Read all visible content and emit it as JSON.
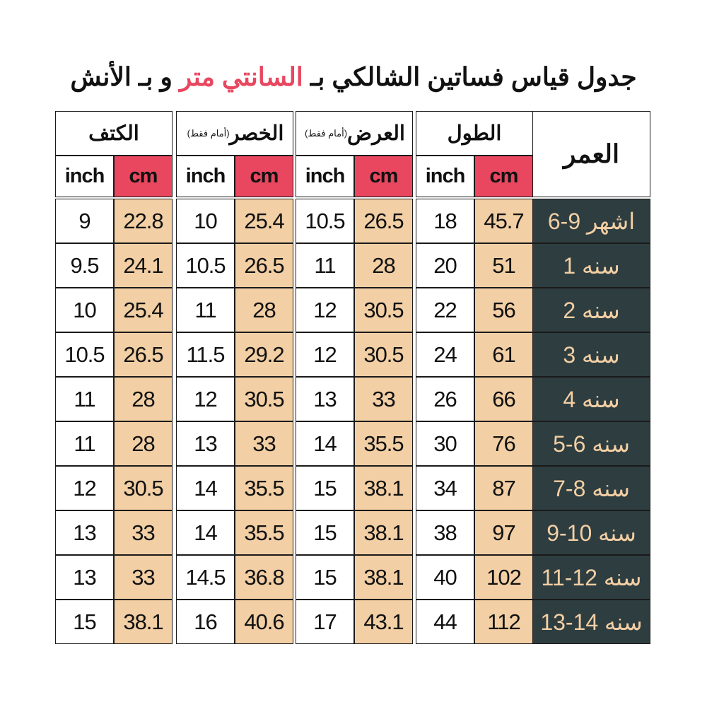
{
  "title": {
    "before": "جدول قياس فساتين الشالكي بـ",
    "highlight": "السانتي متر",
    "after": "و بـ الأنش"
  },
  "table": {
    "age_header": "العمر",
    "units": [
      "cm",
      "inch"
    ],
    "groups": [
      {
        "name": "الطول"
      },
      {
        "name": "العرض",
        "note": "(أمام فقط)"
      },
      {
        "name": "الخصر",
        "note": "(أمام فقط)"
      },
      {
        "name": "الكتف"
      }
    ],
    "rows": [
      {
        "age": "6-9 اشهر",
        "values": [
          45.7,
          18,
          26.5,
          10.5,
          25.4,
          10,
          22.8,
          9
        ]
      },
      {
        "age": "1 سنه",
        "values": [
          51,
          20,
          28,
          11,
          26.5,
          10.5,
          24.1,
          9.5
        ]
      },
      {
        "age": "2 سنه",
        "values": [
          56,
          22,
          30.5,
          12,
          28,
          11,
          25.4,
          10
        ]
      },
      {
        "age": "3 سنه",
        "values": [
          61,
          24,
          30.5,
          12,
          29.2,
          11.5,
          26.5,
          10.5
        ]
      },
      {
        "age": "4 سنه",
        "values": [
          66,
          26,
          33,
          13,
          30.5,
          12,
          28,
          11
        ]
      },
      {
        "age": "5-6 سنه",
        "values": [
          76,
          30,
          35.5,
          14,
          33,
          13,
          28,
          11
        ]
      },
      {
        "age": "7-8 سنه",
        "values": [
          87,
          34,
          38.1,
          15,
          35.5,
          14,
          30.5,
          12
        ]
      },
      {
        "age": "9-10 سنه",
        "values": [
          97,
          38,
          38.1,
          15,
          35.5,
          14,
          33,
          13
        ]
      },
      {
        "age": "11-12 سنه",
        "values": [
          102,
          40,
          38.1,
          15,
          36.8,
          14.5,
          33,
          13
        ]
      },
      {
        "age": "13-14 سنه",
        "values": [
          112,
          44,
          43.1,
          17,
          40.6,
          16,
          38.1,
          15
        ]
      }
    ]
  }
}
